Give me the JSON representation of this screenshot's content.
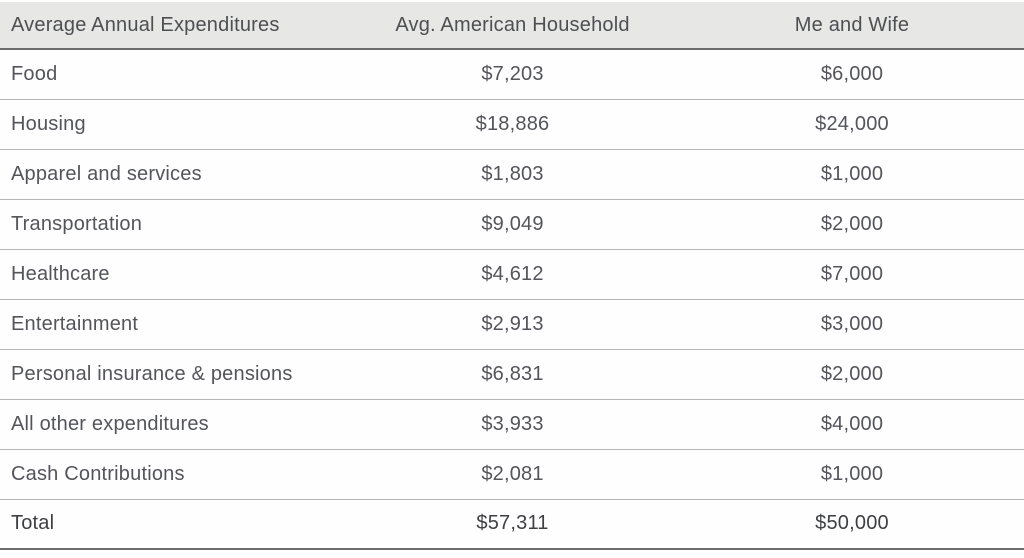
{
  "chart_data": {
    "type": "table",
    "title": "Average Annual Expenditures",
    "columns": [
      "Average Annual Expenditures",
      "Avg. American Household",
      "Me and Wife"
    ],
    "categories": [
      "Food",
      "Housing",
      "Apparel and services",
      "Transportation",
      "Healthcare",
      "Entertainment",
      "Personal insurance & pensions",
      "All other expenditures",
      "Cash Contributions"
    ],
    "series": [
      {
        "name": "Avg. American Household",
        "values": [
          7203,
          18886,
          1803,
          9049,
          4612,
          2913,
          6831,
          3933,
          2081
        ],
        "total": 57311
      },
      {
        "name": "Me and Wife",
        "values": [
          6000,
          24000,
          1000,
          2000,
          7000,
          3000,
          2000,
          4000,
          1000
        ],
        "total": 50000
      }
    ],
    "rows": [
      {
        "category": "Food",
        "avg_household": "$7,203",
        "me_and_wife": "$6,000"
      },
      {
        "category": "Housing",
        "avg_household": "$18,886",
        "me_and_wife": "$24,000"
      },
      {
        "category": "Apparel and services",
        "avg_household": "$1,803",
        "me_and_wife": "$1,000"
      },
      {
        "category": "Transportation",
        "avg_household": "$9,049",
        "me_and_wife": "$2,000"
      },
      {
        "category": "Healthcare",
        "avg_household": "$4,612",
        "me_and_wife": "$7,000"
      },
      {
        "category": "Entertainment",
        "avg_household": "$2,913",
        "me_and_wife": "$3,000"
      },
      {
        "category": "Personal insurance & pensions",
        "avg_household": "$6,831",
        "me_and_wife": "$2,000"
      },
      {
        "category": "All other expenditures",
        "avg_household": "$3,933",
        "me_and_wife": "$4,000"
      },
      {
        "category": "Cash Contributions",
        "avg_household": "$2,081",
        "me_and_wife": "$1,000"
      }
    ],
    "total_row": {
      "category": "Total",
      "avg_household": "$57,311",
      "me_and_wife": "$50,000"
    },
    "layout": {
      "grid": "horizontal-rules-only",
      "header_background": "#e7e7e5",
      "heavy_rule_color": "#6c6c6c",
      "light_rule_color": "#b5b5b3",
      "text_color": "#54555a",
      "total_text_color": "#3e3f43"
    }
  }
}
